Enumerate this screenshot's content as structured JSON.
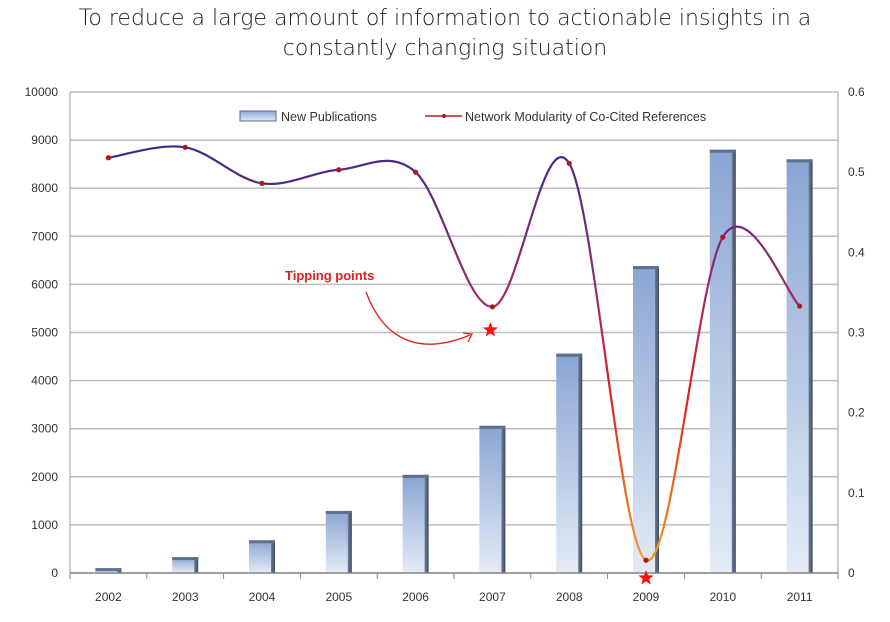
{
  "chart_data": {
    "type": "bar",
    "title": "To reduce a large amount of information to actionable insights in a constantly changing situation",
    "title_lines": [
      "To reduce a large amount of information to actionable insights in a",
      "constantly changing situation"
    ],
    "categories": [
      "2002",
      "2003",
      "2004",
      "2005",
      "2006",
      "2007",
      "2008",
      "2009",
      "2010",
      "2011"
    ],
    "series": [
      {
        "name": "New Publications",
        "type": "bar",
        "axis": "left",
        "color": "#8ea9d6",
        "values": [
          100,
          330,
          680,
          1290,
          2040,
          3060,
          4560,
          6380,
          8800,
          8600
        ]
      },
      {
        "name": "Network Modularity of Co-Cited References",
        "type": "line",
        "axis": "right",
        "color": "#c0202a",
        "values": [
          0.518,
          0.531,
          0.486,
          0.503,
          0.5,
          0.332,
          0.511,
          0.016,
          0.419,
          0.333
        ]
      }
    ],
    "left_axis": {
      "min": 0,
      "max": 10000,
      "ticks": [
        0,
        1000,
        2000,
        3000,
        4000,
        5000,
        6000,
        7000,
        8000,
        9000,
        10000
      ]
    },
    "right_axis": {
      "min": 0,
      "max": 0.6,
      "ticks": [
        "0",
        "0.1",
        "0.2",
        "0.3",
        "0.4",
        "0.5",
        "0.6"
      ]
    },
    "grid": true,
    "legend": "top-center",
    "annotations": [
      {
        "text": "Tipping points",
        "markers": [
          "2007",
          "2009"
        ]
      }
    ]
  }
}
